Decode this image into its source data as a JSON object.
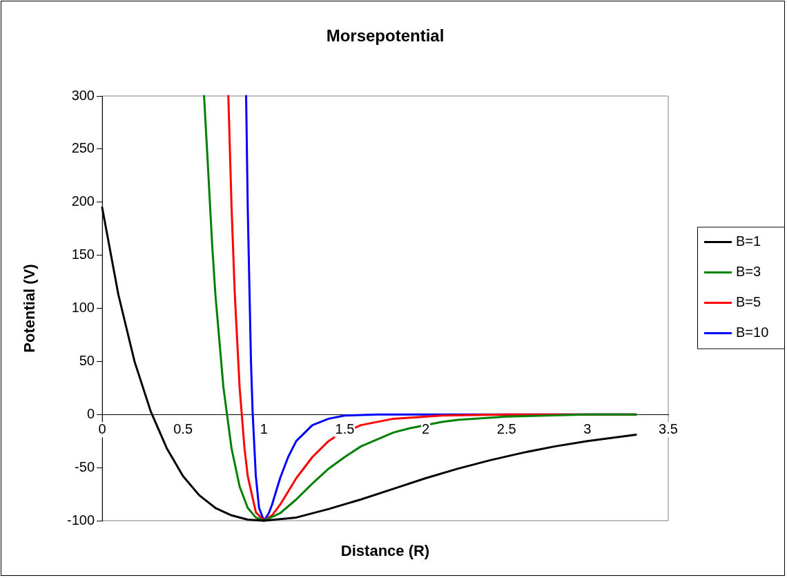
{
  "chart_data": {
    "type": "line",
    "title": "Morsepotential",
    "xlabel": "Distance (R)",
    "ylabel": "Potential (V)",
    "xlim": [
      0,
      3.5
    ],
    "xticks": [
      0,
      0.5,
      1,
      1.5,
      2,
      2.5,
      3,
      3.5
    ],
    "ylim": [
      -100,
      300
    ],
    "yticks": [
      -100,
      -50,
      0,
      50,
      100,
      150,
      200,
      250,
      300
    ],
    "grid": false,
    "legend": "right",
    "marker": "none",
    "line_style": "solid",
    "series": [
      {
        "name": "B=1",
        "color": "#000000",
        "x": [
          0,
          0.1,
          0.2,
          0.3,
          0.4,
          0.5,
          0.6,
          0.7,
          0.8,
          0.9,
          1,
          1.2,
          1.4,
          1.6,
          1.8,
          2,
          2.2,
          2.4,
          2.6,
          2.8,
          3,
          3.3
        ],
        "values": [
          195,
          113,
          50,
          3,
          -32,
          -58,
          -76,
          -88,
          -95,
          -99,
          -100,
          -97,
          -89,
          -80,
          -70,
          -60,
          -51,
          -43,
          -36,
          -30,
          -25,
          -19
        ]
      },
      {
        "name": "B=3",
        "color": "#008000",
        "x": [
          0.63,
          0.65,
          0.68,
          0.7,
          0.75,
          0.8,
          0.85,
          0.9,
          0.95,
          1,
          1.1,
          1.2,
          1.3,
          1.4,
          1.5,
          1.6,
          1.8,
          1.9,
          2.1,
          2.2,
          2.5,
          3,
          3.3
        ],
        "values": [
          300,
          245,
          160,
          113,
          25,
          -32,
          -68,
          -88,
          -97,
          -100,
          -93,
          -80,
          -65,
          -51,
          -40,
          -30,
          -17,
          -13,
          -7,
          -5,
          -2,
          0,
          0
        ]
      },
      {
        "name": "B=5",
        "color": "#ff0000",
        "x": [
          0.78,
          0.8,
          0.82,
          0.85,
          0.88,
          0.9,
          0.95,
          1,
          1.05,
          1.1,
          1.2,
          1.3,
          1.4,
          1.45,
          1.6,
          1.8,
          2.1,
          2.5,
          3.3
        ],
        "values": [
          300,
          195,
          113,
          25,
          -32,
          -58,
          -92,
          -100,
          -95,
          -85,
          -60,
          -40,
          -25,
          -20,
          -10,
          -4,
          -1,
          0,
          0
        ]
      },
      {
        "name": "B=10",
        "color": "#0000ff",
        "x": [
          0.89,
          0.9,
          0.92,
          0.93,
          0.95,
          0.97,
          1,
          1.03,
          1.05,
          1.1,
          1.15,
          1.2,
          1.3,
          1.4,
          1.5,
          1.7,
          3.3
        ],
        "values": [
          300,
          195,
          50,
          3,
          -58,
          -88,
          -100,
          -93,
          -85,
          -60,
          -40,
          -25,
          -10,
          -4,
          -1,
          0,
          0
        ]
      }
    ]
  }
}
